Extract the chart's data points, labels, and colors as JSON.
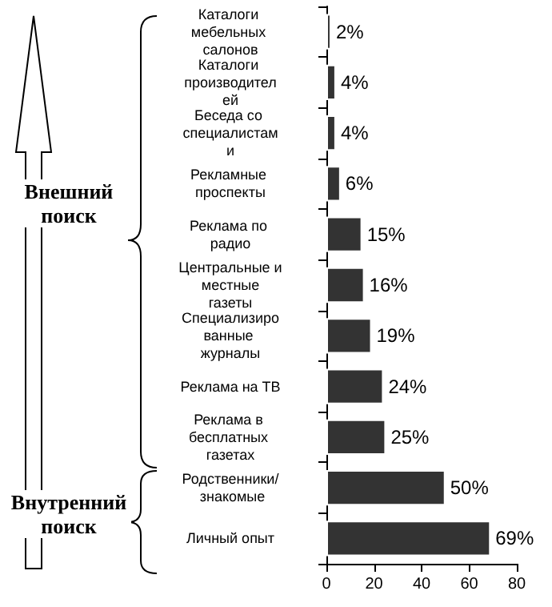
{
  "chart_data": {
    "type": "bar",
    "orientation": "horizontal",
    "categories": [
      "Каталоги мебельных салонов",
      "Каталоги производителей",
      "Беседа со специалистами",
      "Рекламные проспекты",
      "Реклама по радио",
      "Центральные и местные газеты",
      "Специализированные журналы",
      "Реклама на ТВ",
      "Реклама в бесплатных газетах",
      "Родственники/ знакомые",
      "Личный опыт"
    ],
    "values": [
      2,
      4,
      4,
      6,
      15,
      16,
      19,
      24,
      25,
      50,
      69
    ],
    "value_labels": [
      "2%",
      "4%",
      "4%",
      "6%",
      "15%",
      "16%",
      "19%",
      "24%",
      "25%",
      "50%",
      "69%"
    ],
    "color": "#333333",
    "xlim": [
      0,
      80
    ],
    "xticks": [
      0,
      20,
      40,
      60,
      80
    ],
    "grid": false,
    "annotations": [
      "Внешний поиск",
      "Внутренний поиск"
    ]
  }
}
